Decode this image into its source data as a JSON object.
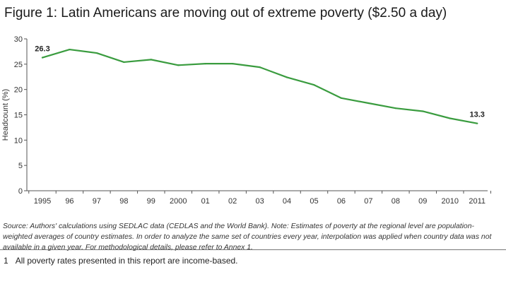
{
  "figure_title": "Figure 1: Latin Americans are moving out of extreme poverty ($2.50 a day)",
  "source_text": "Source: Authors' calculations using SEDLAC data (CEDLAS and the World Bank). Note: Estimates of poverty at the regional level are population-weighted averages of country estimates. In order to analyze the same set of countries every year, interpolation was applied when country data was not available in a given year. For methodological details, please refer to Annex 1.",
  "footnote": {
    "number": "1",
    "text": "All poverty rates presented in this report are income-based."
  },
  "colors": {
    "line": "#3a9c3f",
    "axis": "#555555"
  },
  "chart_data": {
    "type": "line",
    "title": "Figure 1: Latin Americans are moving out of extreme poverty ($2.50 a day)",
    "xlabel": "",
    "ylabel": "Headcount (%)",
    "ylim": [
      0,
      30
    ],
    "yticks": [
      "0",
      "5",
      "10",
      "15",
      "20",
      "25",
      "30"
    ],
    "categories": [
      "1995",
      "96",
      "97",
      "98",
      "99",
      "2000",
      "01",
      "02",
      "03",
      "04",
      "05",
      "06",
      "07",
      "08",
      "09",
      "2010",
      "2011"
    ],
    "series": [
      {
        "name": "Extreme poverty ($2.50 a day)",
        "values": [
          26.3,
          27.9,
          27.2,
          25.4,
          25.9,
          24.8,
          25.1,
          25.1,
          24.4,
          22.4,
          20.9,
          18.3,
          17.3,
          16.3,
          15.7,
          14.3,
          13.3
        ]
      }
    ],
    "annotations": [
      {
        "index": 0,
        "label": "26.3"
      },
      {
        "index": 16,
        "label": "13.3"
      }
    ],
    "grid": false
  }
}
